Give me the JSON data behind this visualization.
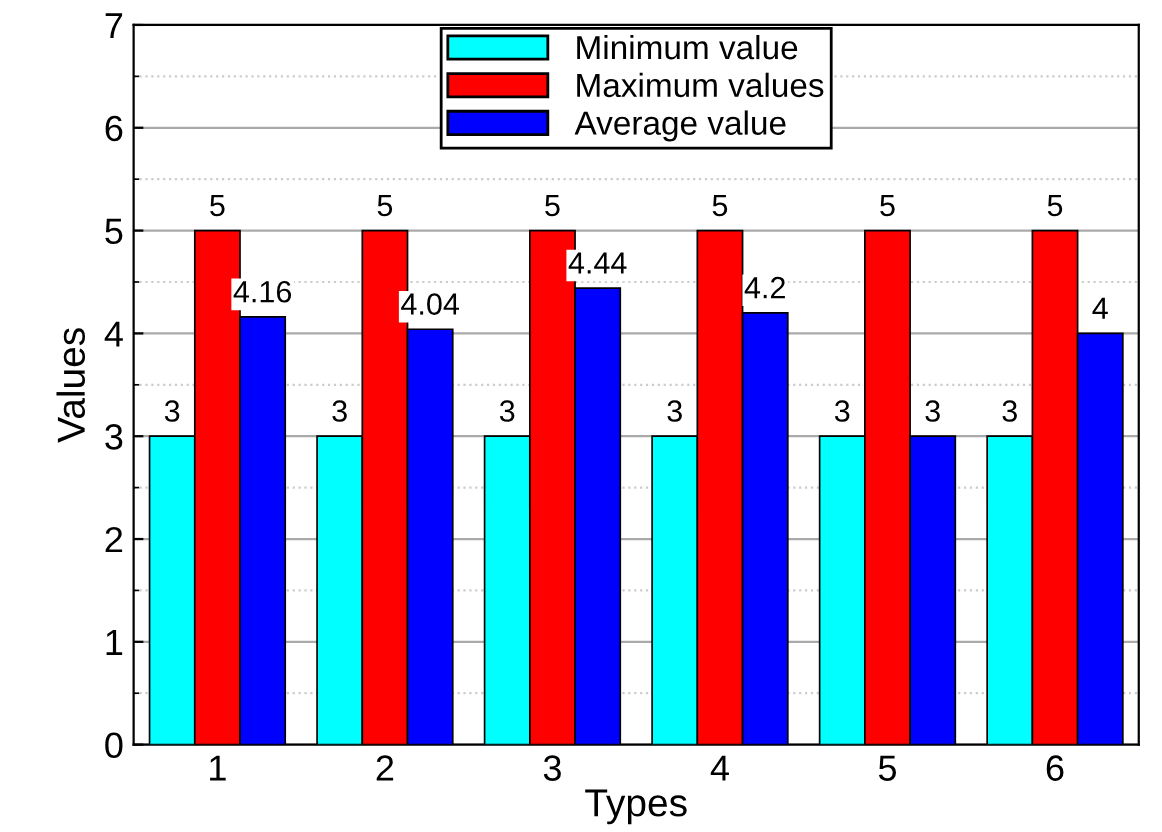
{
  "chart_data": {
    "type": "bar",
    "xlabel": "Types",
    "ylabel": "Values",
    "categories": [
      "1",
      "2",
      "3",
      "4",
      "5",
      "6"
    ],
    "series": [
      {
        "name": "Minimum value",
        "color": "#00ffff",
        "values": [
          3,
          3,
          3,
          3,
          3,
          3
        ]
      },
      {
        "name": "Maximum values",
        "color": "#ff0000",
        "values": [
          5,
          5,
          5,
          5,
          5,
          5
        ]
      },
      {
        "name": "Average value",
        "color": "#0000ff",
        "values": [
          4.16,
          4.04,
          4.44,
          4.2,
          3,
          4
        ]
      }
    ],
    "ylim": [
      0,
      7
    ],
    "yticks": [
      0,
      1,
      2,
      3,
      4,
      5,
      6,
      7
    ],
    "grid": "y",
    "legend": "top",
    "data_labels": true
  }
}
